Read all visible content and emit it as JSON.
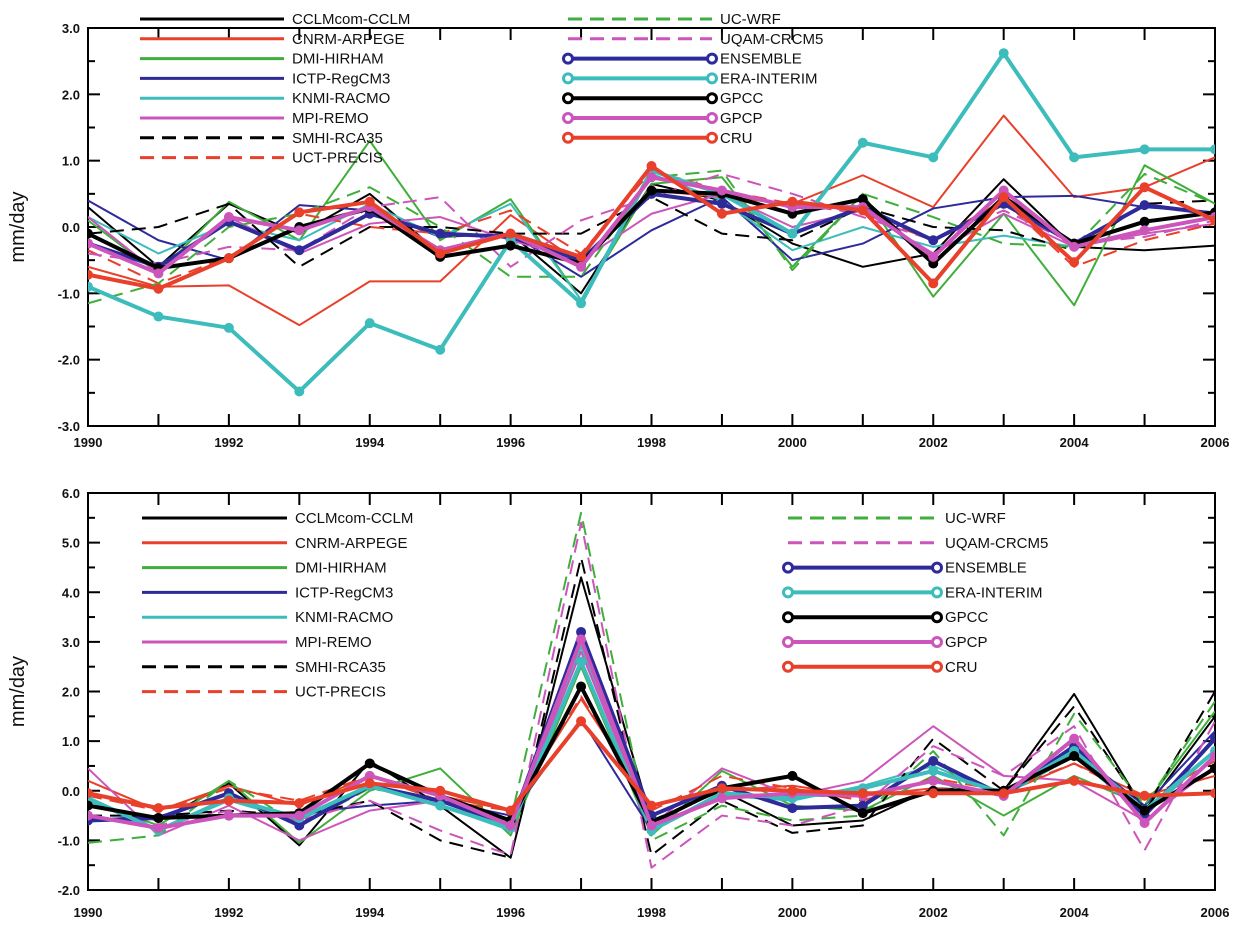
{
  "chart_data": [
    {
      "type": "line",
      "title": "",
      "xlabel": "",
      "ylabel": "mm/day",
      "xlim": [
        1990,
        2006
      ],
      "ylim": [
        -3.0,
        3.0
      ],
      "xticks": [
        "1990",
        "1992",
        "1994",
        "1996",
        "1998",
        "2000",
        "2002",
        "2004",
        "2006"
      ],
      "yticks": [
        "-3.0",
        "-2.0",
        "-1.0",
        "0.0",
        "1.0",
        "2.0",
        "3.0"
      ],
      "grid": false,
      "legend_placement": "top",
      "x": [
        1990,
        1991,
        1992,
        1993,
        1994,
        1995,
        1996,
        1997,
        1998,
        1999,
        2000,
        2001,
        2002,
        2003,
        2004,
        2005,
        2006
      ],
      "series": [
        {
          "name": "CCLMcom-CCLM",
          "color": "#000000",
          "style": "solid",
          "values": [
            0.3,
            -0.6,
            0.35,
            -0.1,
            0.5,
            -0.4,
            -0.1,
            -1.0,
            0.65,
            0.4,
            -0.25,
            -0.6,
            -0.4,
            0.72,
            -0.3,
            -0.35,
            -0.28
          ]
        },
        {
          "name": "CNRM-ARPEGE",
          "color": "#e8402a",
          "style": "solid",
          "values": [
            -0.6,
            -0.9,
            -0.88,
            -1.48,
            -0.82,
            -0.82,
            0.18,
            -0.55,
            0.55,
            0.45,
            0.35,
            0.78,
            0.3,
            1.68,
            0.45,
            0.6,
            1.05
          ]
        },
        {
          "name": "DMI-HIRHAM",
          "color": "#3fae3a",
          "style": "solid",
          "values": [
            0.1,
            -0.7,
            0.38,
            -0.2,
            1.3,
            -0.2,
            0.42,
            -1.1,
            0.65,
            0.75,
            -0.6,
            0.5,
            -1.05,
            0.2,
            -1.18,
            0.93,
            0.35
          ]
        },
        {
          "name": "ICTP-RegCM3",
          "color": "#2e2a9a",
          "style": "solid",
          "values": [
            0.4,
            -0.2,
            -0.5,
            0.33,
            0.25,
            -0.15,
            -0.1,
            -0.75,
            -0.05,
            0.45,
            -0.5,
            -0.25,
            0.28,
            0.45,
            0.47,
            0.3,
            0.22
          ]
        },
        {
          "name": "KNMI-RACMO",
          "color": "#3dbcbc",
          "style": "solid",
          "values": [
            0.15,
            -0.4,
            0.05,
            -0.2,
            0.35,
            -0.15,
            0.35,
            -1.1,
            0.8,
            0.4,
            -0.35,
            0.0,
            -0.3,
            -0.13,
            -0.3,
            0.1,
            0.2
          ]
        },
        {
          "name": "MPI-REMO",
          "color": "#cc55bb",
          "style": "solid",
          "values": [
            0.15,
            -0.7,
            0.15,
            -0.4,
            0.05,
            0.15,
            -0.2,
            -0.5,
            0.2,
            0.5,
            0.0,
            0.25,
            -0.4,
            0.2,
            -0.3,
            -0.1,
            0.05
          ]
        },
        {
          "name": "SMHI-RCA35",
          "color": "#000000",
          "style": "dashed",
          "values": [
            -0.1,
            0.0,
            0.35,
            -0.6,
            0.0,
            0.0,
            -0.1,
            -0.1,
            0.45,
            -0.1,
            -0.2,
            0.3,
            0.0,
            -0.05,
            -0.35,
            0.35,
            0.4
          ]
        },
        {
          "name": "UCT-PRECIS",
          "color": "#e8402a",
          "style": "dashed",
          "values": [
            -0.35,
            -0.85,
            -0.45,
            0.2,
            0.0,
            -0.1,
            0.25,
            -0.4,
            0.85,
            0.55,
            0.35,
            0.2,
            -0.2,
            0.4,
            -0.6,
            -0.2,
            0.05
          ]
        },
        {
          "name": "UC-WRF",
          "color": "#3fae3a",
          "style": "dashed",
          "values": [
            -1.15,
            -0.85,
            0.0,
            0.2,
            0.6,
            0.0,
            -0.75,
            -0.75,
            0.75,
            0.85,
            -0.65,
            0.5,
            0.15,
            -0.25,
            -0.3,
            0.8,
            0.35
          ]
        },
        {
          "name": "UQAM-CRCM5",
          "color": "#cc55bb",
          "style": "dashed",
          "values": [
            -0.4,
            -0.55,
            -0.3,
            -0.35,
            0.3,
            0.45,
            -0.6,
            0.1,
            0.45,
            0.8,
            0.5,
            0.15,
            -0.2,
            0.25,
            -0.25,
            -0.15,
            0.1
          ]
        },
        {
          "name": "ENSEMBLE",
          "color": "#2e2a9a",
          "style": "marker",
          "values": [
            -0.25,
            -0.6,
            0.08,
            -0.35,
            0.2,
            -0.1,
            -0.15,
            -0.5,
            0.5,
            0.35,
            -0.1,
            0.3,
            -0.2,
            0.35,
            -0.25,
            0.33,
            0.2
          ]
        },
        {
          "name": "ERA-INTERIM",
          "color": "#3dbcbc",
          "style": "marker",
          "values": [
            -0.9,
            -1.35,
            -1.52,
            -2.48,
            -1.45,
            -1.85,
            -0.2,
            -1.15,
            0.85,
            0.5,
            -0.1,
            1.27,
            1.05,
            2.62,
            1.05,
            1.17,
            1.17
          ]
        },
        {
          "name": "GPCC",
          "color": "#000000",
          "style": "marker",
          "values": [
            -0.1,
            -0.62,
            -0.47,
            0.0,
            0.28,
            -0.45,
            -0.28,
            -0.55,
            0.55,
            0.5,
            0.2,
            0.42,
            -0.55,
            0.45,
            -0.25,
            0.08,
            0.22
          ]
        },
        {
          "name": "GPCP",
          "color": "#cc55bb",
          "style": "marker",
          "values": [
            -0.25,
            -0.7,
            0.15,
            -0.05,
            0.3,
            -0.35,
            -0.1,
            -0.6,
            0.75,
            0.55,
            0.3,
            0.3,
            -0.45,
            0.55,
            -0.3,
            -0.05,
            0.15
          ]
        },
        {
          "name": "CRU",
          "color": "#e8402a",
          "style": "marker",
          "values": [
            -0.72,
            -0.93,
            -0.47,
            0.22,
            0.38,
            -0.4,
            -0.1,
            -0.45,
            0.92,
            0.2,
            0.38,
            0.25,
            -0.85,
            0.45,
            -0.53,
            0.6,
            0.1
          ]
        }
      ]
    },
    {
      "type": "line",
      "title": "",
      "xlabel": "",
      "ylabel": "mm/day",
      "xlim": [
        1990,
        2006
      ],
      "ylim": [
        -2.0,
        6.0
      ],
      "xticks": [
        "1990",
        "1992",
        "1994",
        "1996",
        "1998",
        "2000",
        "2002",
        "2004",
        "2006"
      ],
      "yticks": [
        "-2.0",
        "-1.0",
        "0.0",
        "1.0",
        "2.0",
        "3.0",
        "4.0",
        "5.0",
        "6.0"
      ],
      "grid": false,
      "legend_placement": "top",
      "x": [
        1990,
        1991,
        1992,
        1993,
        1994,
        1995,
        1996,
        1997,
        1998,
        1999,
        2000,
        2001,
        2002,
        2003,
        2004,
        2005,
        2006
      ],
      "series": [
        {
          "name": "CCLMcom-CCLM",
          "color": "#000000",
          "style": "solid",
          "values": [
            -0.3,
            -0.6,
            0.15,
            -1.1,
            0.6,
            -0.3,
            -1.35,
            4.3,
            -0.6,
            0.0,
            -0.7,
            -0.6,
            0.05,
            0.0,
            1.95,
            -0.4,
            1.5
          ]
        },
        {
          "name": "CNRM-ARPEGE",
          "color": "#e8402a",
          "style": "solid",
          "values": [
            0.2,
            -0.4,
            0.1,
            -0.3,
            0.3,
            -0.1,
            -0.4,
            1.85,
            -0.3,
            0.0,
            0.1,
            -0.1,
            0.05,
            -0.05,
            0.55,
            -0.1,
            0.3
          ]
        },
        {
          "name": "DMI-HIRHAM",
          "color": "#3fae3a",
          "style": "solid",
          "values": [
            -0.2,
            -0.7,
            0.2,
            -1.05,
            0.0,
            0.45,
            -0.9,
            2.5,
            -0.9,
            0.4,
            -0.3,
            -0.4,
            0.3,
            -0.5,
            0.3,
            -0.3,
            1.6
          ]
        },
        {
          "name": "ICTP-RegCM3",
          "color": "#2e2a9a",
          "style": "solid",
          "values": [
            -0.6,
            -0.5,
            -0.5,
            -0.45,
            -0.3,
            -0.2,
            -0.5,
            1.45,
            -0.8,
            -0.1,
            -0.1,
            -0.1,
            0.2,
            -0.1,
            0.8,
            -0.3,
            1.2
          ]
        },
        {
          "name": "KNMI-RACMO",
          "color": "#3dbcbc",
          "style": "solid",
          "values": [
            -0.2,
            -0.8,
            -0.2,
            -0.6,
            0.1,
            -0.3,
            -0.8,
            2.9,
            -0.8,
            -0.1,
            -0.2,
            0.1,
            0.5,
            -0.1,
            0.7,
            -0.5,
            0.8
          ]
        },
        {
          "name": "MPI-REMO",
          "color": "#cc55bb",
          "style": "solid",
          "values": [
            0.45,
            -0.9,
            -0.3,
            -1.0,
            -0.4,
            -0.2,
            -0.7,
            2.8,
            -0.7,
            0.45,
            -0.1,
            0.2,
            1.3,
            0.3,
            0.2,
            -0.6,
            0.5
          ]
        },
        {
          "name": "SMHI-RCA35",
          "color": "#000000",
          "style": "dashed",
          "values": [
            -0.5,
            -0.5,
            -0.4,
            -0.5,
            -0.2,
            -1.0,
            -1.35,
            4.7,
            -1.3,
            -0.2,
            -0.85,
            -0.7,
            1.05,
            0.0,
            1.7,
            -0.4,
            2.0
          ]
        },
        {
          "name": "UCT-PRECIS",
          "color": "#e8402a",
          "style": "dashed",
          "values": [
            -0.1,
            -0.4,
            0.05,
            -0.2,
            0.3,
            -0.2,
            -0.4,
            1.9,
            -0.4,
            0.3,
            0.05,
            -0.2,
            0.25,
            0.0,
            0.55,
            -0.2,
            0.6
          ]
        },
        {
          "name": "UC-WRF",
          "color": "#3fae3a",
          "style": "dashed",
          "values": [
            -1.05,
            -0.9,
            0.2,
            -0.7,
            0.05,
            -0.2,
            -0.6,
            5.6,
            -1.0,
            -0.3,
            -0.6,
            -0.5,
            0.8,
            -0.9,
            1.55,
            -0.3,
            1.8
          ]
        },
        {
          "name": "UQAM-CRCM5",
          "color": "#cc55bb",
          "style": "dashed",
          "values": [
            -0.5,
            -0.7,
            -0.4,
            -0.6,
            -0.2,
            -0.8,
            -1.3,
            5.4,
            -1.55,
            -0.5,
            -0.7,
            -0.3,
            0.9,
            0.3,
            1.3,
            -1.2,
            1.4
          ]
        },
        {
          "name": "ENSEMBLE",
          "color": "#2e2a9a",
          "style": "marker",
          "values": [
            -0.6,
            -0.55,
            -0.05,
            -0.7,
            0.1,
            -0.2,
            -0.7,
            3.2,
            -0.5,
            0.1,
            -0.35,
            -0.3,
            0.6,
            -0.1,
            0.9,
            -0.5,
            1.05
          ]
        },
        {
          "name": "ERA-INTERIM",
          "color": "#3dbcbc",
          "style": "marker",
          "values": [
            -0.15,
            -0.8,
            -0.15,
            -0.55,
            0.1,
            -0.3,
            -0.75,
            2.6,
            -0.8,
            -0.05,
            -0.15,
            0.05,
            0.4,
            -0.05,
            0.8,
            -0.4,
            0.8
          ]
        },
        {
          "name": "GPCC",
          "color": "#000000",
          "style": "marker",
          "values": [
            -0.3,
            -0.55,
            -0.5,
            -0.45,
            0.55,
            -0.1,
            -0.6,
            2.1,
            -0.65,
            0.05,
            0.3,
            -0.45,
            0.0,
            0.0,
            0.7,
            -0.4,
            0.45
          ]
        },
        {
          "name": "GPCP",
          "color": "#cc55bb",
          "style": "marker",
          "values": [
            -0.5,
            -0.75,
            -0.5,
            -0.5,
            0.3,
            -0.1,
            -0.7,
            3.05,
            -0.7,
            -0.15,
            -0.05,
            -0.1,
            0.2,
            -0.1,
            1.05,
            -0.65,
            0.7
          ]
        },
        {
          "name": "CRU",
          "color": "#e8402a",
          "style": "marker",
          "values": [
            -0.05,
            -0.35,
            -0.2,
            -0.25,
            0.15,
            0.0,
            -0.4,
            1.4,
            -0.3,
            0.05,
            0.0,
            -0.05,
            -0.05,
            -0.05,
            0.2,
            -0.1,
            -0.05
          ]
        }
      ]
    }
  ]
}
